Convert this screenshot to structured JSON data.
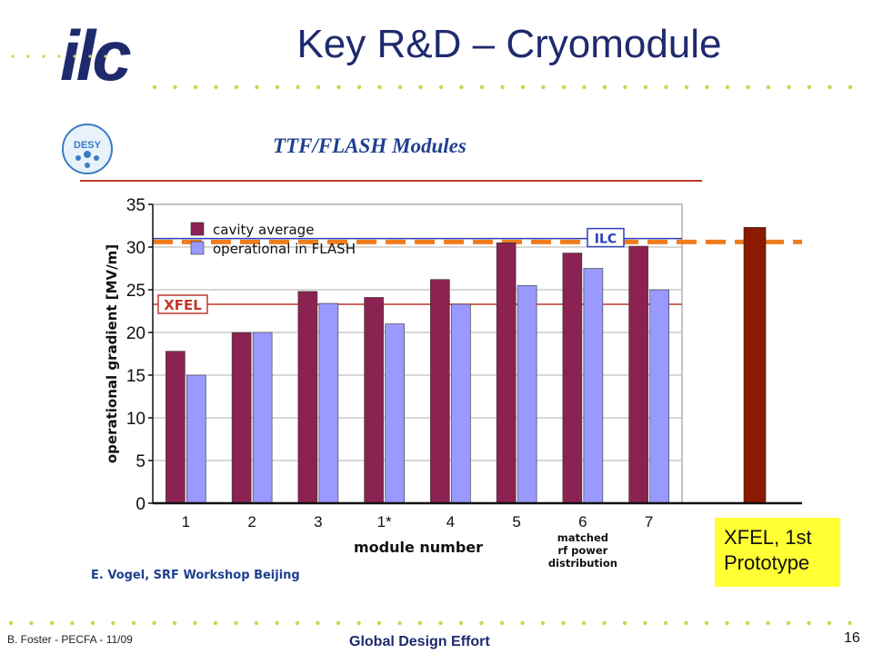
{
  "slide": {
    "logo_text": "ilc",
    "title": "Key R&D – Cryomodule",
    "accent_green": "#c9d64a",
    "title_color": "#1f2a6e"
  },
  "panel": {
    "title": "TTF/FLASH Modules",
    "desy_logo_text": "DESY",
    "credit": "E. Vogel, SRF Workshop Beijing"
  },
  "callout": {
    "line1": "XFEL, 1st",
    "line2": "Prototype",
    "bg_color": "#ffff33"
  },
  "footer": {
    "left": "B. Foster - PECFA - 11/09",
    "center": "Global Design Effort",
    "page": "16"
  },
  "chart_data": {
    "type": "bar",
    "categories": [
      "1",
      "2",
      "3",
      "1*",
      "4",
      "5",
      "6",
      "7"
    ],
    "category_notes": {
      "6": "matched rf power distribution"
    },
    "series": [
      {
        "name": "cavity average",
        "color": "#8b2252",
        "values": [
          17.8,
          20.0,
          24.8,
          24.1,
          26.2,
          30.5,
          29.3,
          30.1
        ]
      },
      {
        "name": "operational in FLASH",
        "color": "#9999ff",
        "values": [
          15.0,
          20.0,
          23.4,
          21.0,
          23.3,
          25.5,
          27.5,
          25.0
        ]
      }
    ],
    "extra_bar": {
      "label": "XFEL, 1st Prototype",
      "value": 32.3,
      "color": "#8b1a00"
    },
    "reference_lines": [
      {
        "label": "XFEL",
        "value": 23.3,
        "color": "#c0392b"
      },
      {
        "label": "ILC",
        "value": 31.0,
        "color": "#2a3fbf"
      },
      {
        "label": "",
        "value": 30.6,
        "color": "#f07c1e",
        "dashed": true
      }
    ],
    "xlabel": "module number",
    "ylabel": "operational gradient [MV/m]",
    "ylim": [
      0,
      35
    ],
    "yticks": [
      0,
      5,
      10,
      15,
      20,
      25,
      30,
      35
    ],
    "grid": true,
    "legend_placement": "top-left"
  }
}
